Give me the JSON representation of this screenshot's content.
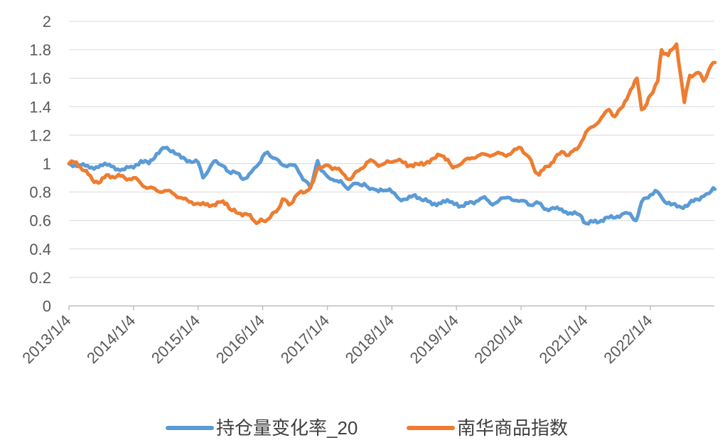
{
  "chart_data": {
    "type": "line",
    "title": "",
    "xlabel": "",
    "ylabel": "",
    "ylim": [
      0,
      2
    ],
    "y_ticks": [
      "0",
      "0.2",
      "0.4",
      "0.6",
      "0.8",
      "1",
      "1.2",
      "1.4",
      "1.6",
      "1.8",
      "2"
    ],
    "x_ticks": [
      "2013/1/4",
      "2014/1/4",
      "2015/1/4",
      "2016/1/4",
      "2017/1/4",
      "2018/1/4",
      "2019/1/4",
      "2020/1/4",
      "2021/1/4",
      "2022/1/4"
    ],
    "grid": true,
    "legend_position": "bottom",
    "series": [
      {
        "name": "持仓量变化率_20",
        "color": "#5B9BD5",
        "points": [
          [
            "2013/1/4",
            1.0
          ],
          [
            "2013/3/1",
            0.99
          ],
          [
            "2013/5/1",
            0.97
          ],
          [
            "2013/7/1",
            0.99
          ],
          [
            "2013/9/1",
            0.98
          ],
          [
            "2013/11/1",
            0.96
          ],
          [
            "2014/1/4",
            0.97
          ],
          [
            "2014/2/15",
            1.02
          ],
          [
            "2014/4/1",
            1.0
          ],
          [
            "2014/5/15",
            1.07
          ],
          [
            "2014/7/1",
            1.11
          ],
          [
            "2014/8/15",
            1.09
          ],
          [
            "2014/10/1",
            1.04
          ],
          [
            "2014/11/15",
            1.02
          ],
          [
            "2015/1/4",
            1.01
          ],
          [
            "2015/2/1",
            0.9
          ],
          [
            "2015/3/15",
            0.98
          ],
          [
            "2015/4/15",
            1.02
          ],
          [
            "2015/5/15",
            0.99
          ],
          [
            "2015/6/15",
            0.95
          ],
          [
            "2015/8/1",
            0.94
          ],
          [
            "2015/9/15",
            0.89
          ],
          [
            "2015/11/1",
            0.94
          ],
          [
            "2015/12/1",
            0.98
          ],
          [
            "2016/1/4",
            1.05
          ],
          [
            "2016/2/1",
            1.08
          ],
          [
            "2016/3/1",
            1.04
          ],
          [
            "2016/4/15",
            1.0
          ],
          [
            "2016/6/1",
            0.99
          ],
          [
            "2016/7/15",
            0.97
          ],
          [
            "2016/9/1",
            0.88
          ],
          [
            "2016/10/1",
            0.83
          ],
          [
            "2016/10/20",
            0.92
          ],
          [
            "2016/11/10",
            1.02
          ],
          [
            "2016/12/1",
            0.95
          ],
          [
            "2017/1/4",
            0.91
          ],
          [
            "2017/2/15",
            0.88
          ],
          [
            "2017/4/1",
            0.86
          ],
          [
            "2017/5/1",
            0.82
          ],
          [
            "2017/6/1",
            0.86
          ],
          [
            "2017/8/1",
            0.86
          ],
          [
            "2017/9/1",
            0.82
          ],
          [
            "2017/11/1",
            0.82
          ],
          [
            "2018/1/4",
            0.8
          ],
          [
            "2018/2/15",
            0.75
          ],
          [
            "2018/4/1",
            0.75
          ],
          [
            "2018/5/15",
            0.78
          ],
          [
            "2018/7/1",
            0.74
          ],
          [
            "2018/9/1",
            0.72
          ],
          [
            "2018/11/1",
            0.73
          ],
          [
            "2019/1/4",
            0.72
          ],
          [
            "2019/2/15",
            0.7
          ],
          [
            "2019/4/1",
            0.73
          ],
          [
            "2019/6/1",
            0.76
          ],
          [
            "2019/7/15",
            0.72
          ],
          [
            "2019/9/1",
            0.74
          ],
          [
            "2019/11/1",
            0.76
          ],
          [
            "2020/1/4",
            0.74
          ],
          [
            "2020/2/15",
            0.71
          ],
          [
            "2020/4/1",
            0.73
          ],
          [
            "2020/5/15",
            0.68
          ],
          [
            "2020/7/1",
            0.69
          ],
          [
            "2020/9/1",
            0.66
          ],
          [
            "2020/11/1",
            0.66
          ],
          [
            "2020/12/1",
            0.64
          ],
          [
            "2021/1/4",
            0.58
          ],
          [
            "2021/2/15",
            0.59
          ],
          [
            "2021/4/1",
            0.6
          ],
          [
            "2021/5/15",
            0.62
          ],
          [
            "2021/7/1",
            0.63
          ],
          [
            "2021/9/1",
            0.65
          ],
          [
            "2021/10/15",
            0.6
          ],
          [
            "2021/11/15",
            0.73
          ],
          [
            "2022/1/4",
            0.78
          ],
          [
            "2022/2/1",
            0.81
          ],
          [
            "2022/3/15",
            0.75
          ],
          [
            "2022/5/1",
            0.71
          ],
          [
            "2022/6/15",
            0.7
          ],
          [
            "2022/8/1",
            0.7
          ],
          [
            "2022/9/15",
            0.75
          ],
          [
            "2022/11/1",
            0.77
          ],
          [
            "2022/12/1",
            0.79
          ],
          [
            "2022/12/25",
            0.83
          ],
          [
            "2023/1/4",
            0.82
          ]
        ]
      },
      {
        "name": "南华商品指数",
        "color": "#ED7D31",
        "points": [
          [
            "2013/1/4",
            1.0
          ],
          [
            "2013/2/15",
            1.01
          ],
          [
            "2013/4/1",
            0.95
          ],
          [
            "2013/5/15",
            0.89
          ],
          [
            "2013/7/1",
            0.87
          ],
          [
            "2013/8/15",
            0.92
          ],
          [
            "2013/10/1",
            0.91
          ],
          [
            "2013/11/15",
            0.9
          ],
          [
            "2014/1/4",
            0.9
          ],
          [
            "2014/2/15",
            0.86
          ],
          [
            "2014/4/1",
            0.83
          ],
          [
            "2014/5/15",
            0.81
          ],
          [
            "2014/7/1",
            0.81
          ],
          [
            "2014/8/15",
            0.79
          ],
          [
            "2014/10/1",
            0.76
          ],
          [
            "2014/11/15",
            0.73
          ],
          [
            "2015/1/4",
            0.72
          ],
          [
            "2015/2/15",
            0.71
          ],
          [
            "2015/4/1",
            0.71
          ],
          [
            "2015/5/15",
            0.73
          ],
          [
            "2015/6/15",
            0.72
          ],
          [
            "2015/7/15",
            0.67
          ],
          [
            "2015/9/1",
            0.65
          ],
          [
            "2015/10/15",
            0.64
          ],
          [
            "2015/11/15",
            0.6
          ],
          [
            "2015/12/15",
            0.59
          ],
          [
            "2016/1/4",
            0.6
          ],
          [
            "2016/2/15",
            0.62
          ],
          [
            "2016/4/1",
            0.68
          ],
          [
            "2016/4/25",
            0.75
          ],
          [
            "2016/6/1",
            0.71
          ],
          [
            "2016/7/15",
            0.78
          ],
          [
            "2016/9/1",
            0.8
          ],
          [
            "2016/10/15",
            0.87
          ],
          [
            "2016/11/15",
            0.97
          ],
          [
            "2016/12/15",
            0.98
          ],
          [
            "2017/1/4",
            0.99
          ],
          [
            "2017/2/15",
            0.97
          ],
          [
            "2017/4/1",
            0.93
          ],
          [
            "2017/5/15",
            0.89
          ],
          [
            "2017/7/1",
            0.95
          ],
          [
            "2017/8/15",
            1.01
          ],
          [
            "2017/9/15",
            1.02
          ],
          [
            "2017/11/1",
            0.99
          ],
          [
            "2018/1/4",
            1.01
          ],
          [
            "2018/2/15",
            1.03
          ],
          [
            "2018/4/1",
            0.98
          ],
          [
            "2018/5/15",
            1.0
          ],
          [
            "2018/7/1",
            0.99
          ],
          [
            "2018/8/15",
            1.03
          ],
          [
            "2018/10/1",
            1.06
          ],
          [
            "2018/11/15",
            1.03
          ],
          [
            "2018/12/15",
            0.97
          ],
          [
            "2019/1/4",
            0.98
          ],
          [
            "2019/2/15",
            1.02
          ],
          [
            "2019/4/1",
            1.04
          ],
          [
            "2019/5/15",
            1.06
          ],
          [
            "2019/7/1",
            1.06
          ],
          [
            "2019/8/15",
            1.07
          ],
          [
            "2019/10/1",
            1.06
          ],
          [
            "2019/11/15",
            1.08
          ],
          [
            "2020/1/4",
            1.11
          ],
          [
            "2020/2/15",
            1.05
          ],
          [
            "2020/3/15",
            0.97
          ],
          [
            "2020/4/15",
            0.92
          ],
          [
            "2020/6/1",
            0.98
          ],
          [
            "2020/7/15",
            1.04
          ],
          [
            "2020/9/1",
            1.08
          ],
          [
            "2020/10/1",
            1.06
          ],
          [
            "2020/11/15",
            1.1
          ],
          [
            "2021/1/4",
            1.22
          ],
          [
            "2021/2/15",
            1.26
          ],
          [
            "2021/4/1",
            1.32
          ],
          [
            "2021/5/15",
            1.38
          ],
          [
            "2021/6/15",
            1.33
          ],
          [
            "2021/8/1",
            1.4
          ],
          [
            "2021/9/15",
            1.52
          ],
          [
            "2021/10/20",
            1.6
          ],
          [
            "2021/11/15",
            1.38
          ],
          [
            "2021/12/15",
            1.42
          ],
          [
            "2022/1/4",
            1.48
          ],
          [
            "2022/2/15",
            1.58
          ],
          [
            "2022/3/8",
            1.8
          ],
          [
            "2022/4/15",
            1.76
          ],
          [
            "2022/6/1",
            1.84
          ],
          [
            "2022/7/15",
            1.43
          ],
          [
            "2022/8/15",
            1.62
          ],
          [
            "2022/10/1",
            1.64
          ],
          [
            "2022/11/1",
            1.58
          ],
          [
            "2022/12/1",
            1.66
          ],
          [
            "2023/1/4",
            1.71
          ]
        ]
      }
    ]
  }
}
